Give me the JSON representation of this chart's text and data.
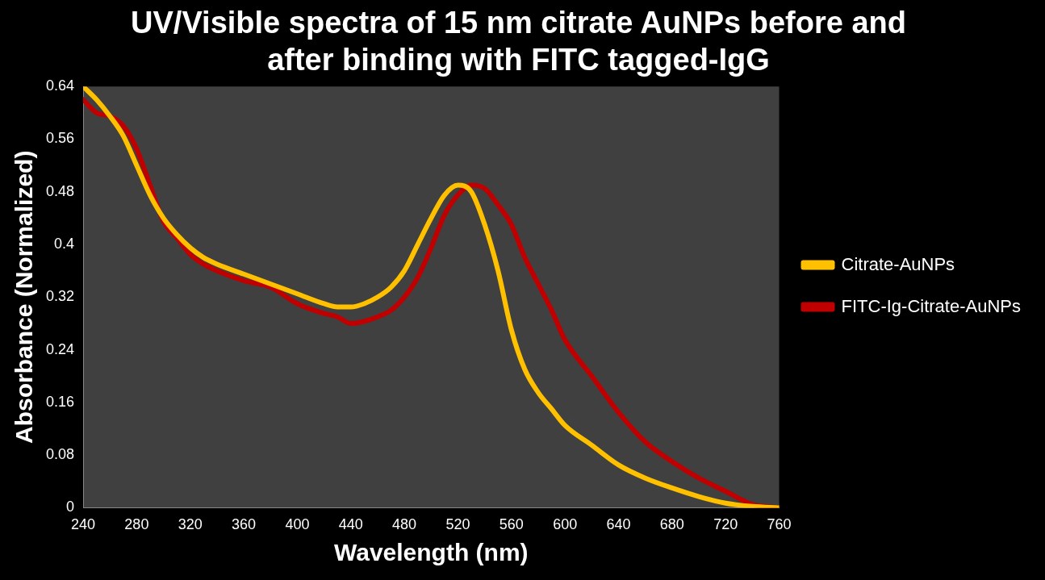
{
  "chart_data": {
    "type": "line",
    "title": "UV/Visible spectra of 15 nm citrate AuNPs before and after binding with FITC tagged-IgG",
    "xlabel": "Wavelength (nm)",
    "ylabel": "Absorbance (Normalized)",
    "xlim": [
      240,
      760
    ],
    "xticks": [
      240,
      280,
      320,
      360,
      400,
      440,
      480,
      520,
      560,
      600,
      640,
      680,
      720,
      760
    ],
    "ylim": [
      0,
      0.64
    ],
    "yticks": [
      0,
      0.08,
      0.16,
      0.24,
      0.32,
      0.4,
      0.48,
      0.56,
      0.64
    ],
    "grid": false,
    "legend": "right",
    "marker": "none",
    "x": [
      240,
      250,
      260,
      270,
      280,
      290,
      300,
      310,
      320,
      330,
      340,
      360,
      380,
      400,
      420,
      430,
      440,
      450,
      460,
      470,
      480,
      490,
      500,
      510,
      520,
      530,
      540,
      550,
      560,
      570,
      580,
      590,
      600,
      620,
      640,
      660,
      680,
      700,
      720,
      740,
      760
    ],
    "series": [
      {
        "name": "Citrate-AuNPs",
        "color": "#ffc000",
        "values": [
          0.64,
          0.62,
          0.595,
          0.565,
          0.52,
          0.475,
          0.44,
          0.415,
          0.395,
          0.38,
          0.37,
          0.355,
          0.34,
          0.325,
          0.31,
          0.305,
          0.305,
          0.31,
          0.32,
          0.335,
          0.36,
          0.4,
          0.44,
          0.475,
          0.49,
          0.48,
          0.43,
          0.36,
          0.27,
          0.21,
          0.175,
          0.15,
          0.125,
          0.095,
          0.065,
          0.045,
          0.03,
          0.017,
          0.007,
          0.002,
          0
        ]
      },
      {
        "name": "FITC-Ig-Citrate-AuNPs",
        "color": "#c00000",
        "values": [
          0.62,
          0.6,
          0.595,
          0.58,
          0.545,
          0.49,
          0.435,
          0.41,
          0.385,
          0.37,
          0.36,
          0.345,
          0.335,
          0.31,
          0.295,
          0.29,
          0.28,
          0.283,
          0.29,
          0.3,
          0.32,
          0.35,
          0.395,
          0.445,
          0.475,
          0.49,
          0.485,
          0.46,
          0.43,
          0.38,
          0.34,
          0.3,
          0.255,
          0.2,
          0.145,
          0.1,
          0.07,
          0.045,
          0.025,
          0.005,
          0
        ]
      }
    ]
  }
}
